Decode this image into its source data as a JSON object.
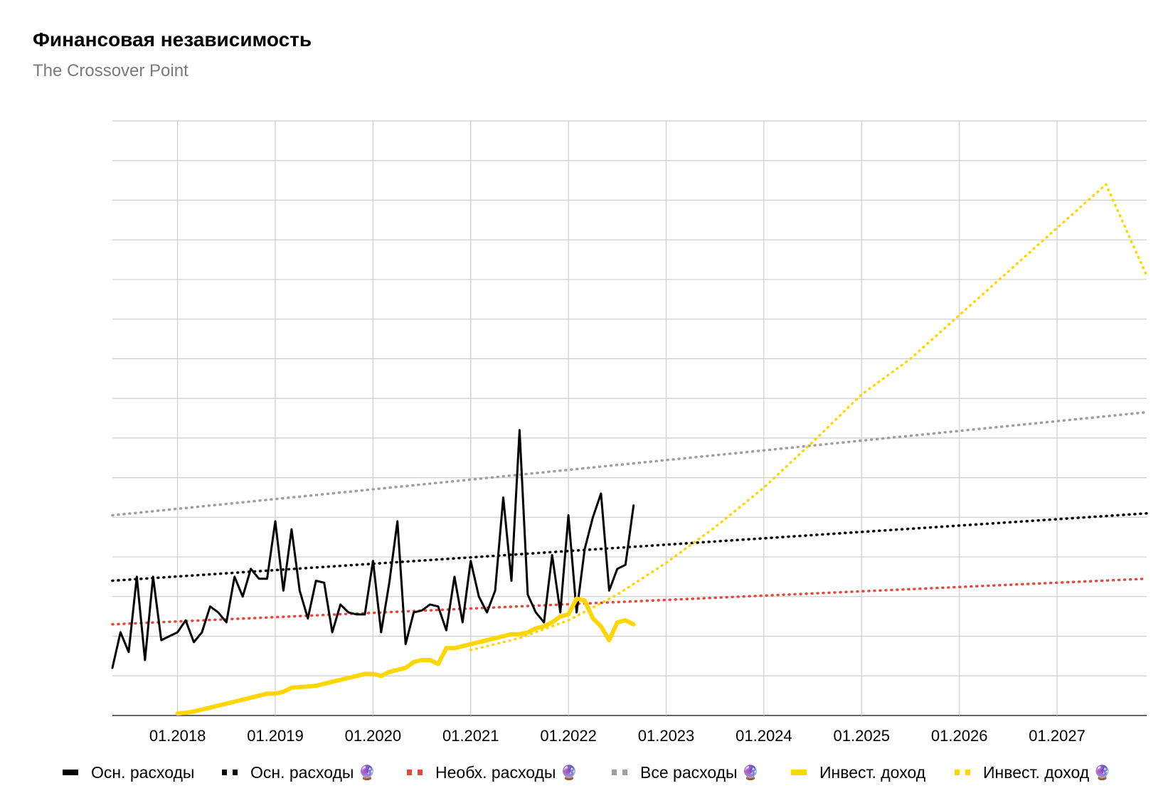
{
  "title": "Финансовая независимость",
  "subtitle": "The Crossover Point",
  "chart_data": {
    "type": "line",
    "title": "Финансовая независимость",
    "subtitle": "The Crossover Point",
    "xlabel": "",
    "ylabel": "",
    "x_tick_labels": [
      "01.2018",
      "01.2019",
      "01.2020",
      "01.2021",
      "01.2022",
      "01.2023",
      "01.2024",
      "01.2025",
      "01.2026",
      "01.2027"
    ],
    "x_range": [
      "2017-05",
      "2027-12"
    ],
    "y_range": [
      0,
      15
    ],
    "y_gridlines": 15,
    "y_tick_labels_visible": false,
    "grid": true,
    "legend_position": "bottom",
    "series": [
      {
        "name": "Осн. расходы",
        "style": "solid",
        "color": "#000000",
        "x": [
          "2017-05",
          "2017-06",
          "2017-07",
          "2017-08",
          "2017-09",
          "2017-10",
          "2017-11",
          "2017-12",
          "2018-01",
          "2018-02",
          "2018-03",
          "2018-04",
          "2018-05",
          "2018-06",
          "2018-07",
          "2018-08",
          "2018-09",
          "2018-10",
          "2018-11",
          "2018-12",
          "2019-01",
          "2019-02",
          "2019-03",
          "2019-04",
          "2019-05",
          "2019-06",
          "2019-07",
          "2019-08",
          "2019-09",
          "2019-10",
          "2019-11",
          "2019-12",
          "2020-01",
          "2020-02",
          "2020-03",
          "2020-04",
          "2020-05",
          "2020-06",
          "2020-07",
          "2020-08",
          "2020-09",
          "2020-10",
          "2020-11",
          "2020-12",
          "2021-01",
          "2021-02",
          "2021-03",
          "2021-04",
          "2021-05",
          "2021-06",
          "2021-07",
          "2021-08",
          "2021-09",
          "2021-10",
          "2021-11",
          "2021-12",
          "2022-01",
          "2022-02",
          "2022-03",
          "2022-04",
          "2022-05",
          "2022-06",
          "2022-07",
          "2022-08",
          "2022-09",
          "2022-10"
        ],
        "values": [
          1.2,
          2.1,
          1.6,
          3.5,
          1.4,
          3.5,
          1.9,
          2.0,
          2.1,
          2.4,
          1.85,
          2.1,
          2.75,
          2.6,
          2.35,
          3.5,
          3.0,
          3.7,
          3.45,
          3.45,
          4.9,
          3.15,
          4.7,
          3.15,
          2.45,
          3.4,
          3.35,
          2.1,
          2.8,
          2.6,
          2.55,
          2.55,
          3.9,
          2.1,
          3.35,
          4.9,
          1.8,
          2.6,
          2.65,
          2.8,
          2.75,
          2.15,
          3.5,
          2.35,
          3.9,
          3.0,
          2.6,
          3.15,
          5.5,
          3.4,
          7.2,
          3.05,
          2.6,
          2.35,
          4.05,
          2.6,
          5.05,
          2.6,
          4.2,
          5.0,
          5.6,
          3.15,
          3.7,
          3.8,
          5.3,
          null
        ],
        "note": "last point 2022-09 = 5.3; monthly values estimated"
      },
      {
        "name": "Осн. расходы 🔮",
        "style": "dotted",
        "color": "#000000",
        "x": [
          "2017-05",
          "2027-12"
        ],
        "values": [
          3.4,
          5.1
        ]
      },
      {
        "name": "Необх. расходы 🔮",
        "style": "dotted",
        "color": "#e8453c",
        "x": [
          "2017-05",
          "2027-12"
        ],
        "values": [
          2.3,
          3.45
        ]
      },
      {
        "name": "Все расходы 🔮",
        "style": "dotted",
        "color": "#9e9e9e",
        "x": [
          "2017-05",
          "2027-12"
        ],
        "values": [
          5.05,
          7.65
        ]
      },
      {
        "name": "Инвест. доход",
        "style": "solid",
        "color": "#ffd600",
        "x": [
          "2018-01",
          "2018-02",
          "2018-03",
          "2018-04",
          "2018-05",
          "2018-06",
          "2018-07",
          "2018-08",
          "2018-09",
          "2018-10",
          "2018-11",
          "2018-12",
          "2019-01",
          "2019-02",
          "2019-03",
          "2019-04",
          "2019-05",
          "2019-06",
          "2019-07",
          "2019-08",
          "2019-09",
          "2019-10",
          "2019-11",
          "2019-12",
          "2020-01",
          "2020-02",
          "2020-03",
          "2020-04",
          "2020-05",
          "2020-06",
          "2020-07",
          "2020-08",
          "2020-09",
          "2020-10",
          "2020-11",
          "2020-12",
          "2021-01",
          "2021-02",
          "2021-03",
          "2021-04",
          "2021-05",
          "2021-06",
          "2021-07",
          "2021-08",
          "2021-09",
          "2021-10",
          "2021-11",
          "2021-12",
          "2022-01",
          "2022-02",
          "2022-03",
          "2022-04",
          "2022-05",
          "2022-06",
          "2022-07",
          "2022-08",
          "2022-09",
          "2022-10"
        ],
        "values": [
          0.05,
          0.07,
          0.1,
          0.15,
          0.2,
          0.25,
          0.3,
          0.35,
          0.4,
          0.45,
          0.5,
          0.55,
          0.55,
          0.6,
          0.7,
          0.72,
          0.73,
          0.75,
          0.8,
          0.85,
          0.9,
          0.95,
          1.0,
          1.05,
          1.05,
          1.0,
          1.1,
          1.15,
          1.2,
          1.35,
          1.4,
          1.4,
          1.3,
          1.7,
          1.7,
          1.75,
          1.8,
          1.85,
          1.9,
          1.95,
          2.0,
          2.05,
          2.05,
          2.1,
          2.2,
          2.25,
          2.35,
          2.5,
          2.55,
          2.95,
          2.9,
          2.45,
          2.25,
          1.9,
          2.35,
          2.4,
          2.3,
          null
        ]
      },
      {
        "name": "Инвест. доход 🔮",
        "style": "dotted",
        "color": "#ffd600",
        "x": [
          "2021-01",
          "2021-07",
          "2022-01",
          "2022-07",
          "2023-01",
          "2023-07",
          "2024-01",
          "2024-07",
          "2025-01",
          "2025-07",
          "2026-01",
          "2026-07",
          "2027-01",
          "2027-07",
          "2027-12"
        ],
        "values": [
          1.65,
          1.95,
          2.4,
          3.05,
          3.85,
          4.75,
          5.75,
          6.9,
          8.1,
          9.0,
          10.1,
          11.2,
          12.3,
          13.4,
          11.1
        ]
      }
    ]
  },
  "legend": [
    {
      "label": "Осн. расходы",
      "emoji": "",
      "style": "solid",
      "color": "#000000"
    },
    {
      "label": "Осн. расходы",
      "emoji": "🔮",
      "style": "dotted",
      "color": "#000000"
    },
    {
      "label": "Необх. расходы",
      "emoji": "🔮",
      "style": "dotted",
      "color": "#e8453c"
    },
    {
      "label": "Все расходы",
      "emoji": "🔮",
      "style": "dotted",
      "color": "#9e9e9e"
    },
    {
      "label": "Инвест. доход",
      "emoji": "",
      "style": "solid",
      "color": "#ffd600"
    },
    {
      "label": "Инвест. доход",
      "emoji": "🔮",
      "style": "dotted",
      "color": "#ffd600"
    }
  ]
}
